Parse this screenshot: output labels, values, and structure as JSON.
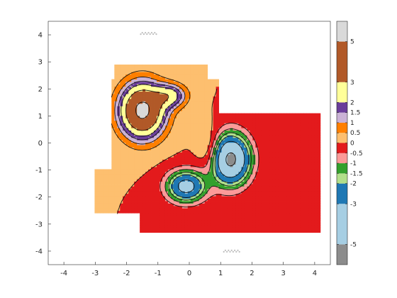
{
  "chart_data": {
    "type": "contour",
    "title": "",
    "xlabel": "",
    "ylabel": "",
    "xlim": [
      -4.5,
      4.5
    ],
    "ylim": [
      -4.5,
      4.5
    ],
    "grid": false,
    "x_ticks": [
      -4,
      -3,
      -2,
      -1,
      0,
      1,
      2,
      3,
      4
    ],
    "y_ticks": [
      -4,
      -3,
      -2,
      -1,
      0,
      1,
      2,
      3,
      4
    ],
    "contour_levels": [
      -5,
      -3,
      -2,
      -1.5,
      -1,
      -0.5,
      0,
      0.5,
      1,
      1.5,
      2,
      3,
      5
    ],
    "colorbar": {
      "range": [
        -6,
        6
      ],
      "tick_labels": [
        "-5",
        "-3",
        "-2",
        "-1.5",
        "-1",
        "-0.5",
        "0",
        "0.5",
        "1",
        "1.5",
        "2",
        "3",
        "5"
      ],
      "tick_values": [
        -5,
        -3,
        -2,
        -1.5,
        -1,
        -0.5,
        0,
        0.5,
        1,
        1.5,
        2,
        3,
        5
      ],
      "bands": [
        {
          "from": -6,
          "to": -5,
          "color": "#8c8c8c"
        },
        {
          "from": -5,
          "to": -3,
          "color": "#a6cee3"
        },
        {
          "from": -3,
          "to": -2,
          "color": "#1f78b4"
        },
        {
          "from": -2,
          "to": -1.5,
          "color": "#b2df8a"
        },
        {
          "from": -1.5,
          "to": -1,
          "color": "#33a02c"
        },
        {
          "from": -1,
          "to": -0.5,
          "color": "#fb9a99"
        },
        {
          "from": -0.5,
          "to": 0,
          "color": "#e31a1c"
        },
        {
          "from": 0,
          "to": 0.5,
          "color": "#fdbf6f"
        },
        {
          "from": 0.5,
          "to": 1,
          "color": "#ff7f00"
        },
        {
          "from": 1,
          "to": 1.5,
          "color": "#cab2d6"
        },
        {
          "from": 1.5,
          "to": 2,
          "color": "#6a3d9a"
        },
        {
          "from": 2,
          "to": 3,
          "color": "#ffff99"
        },
        {
          "from": 3,
          "to": 5,
          "color": "#b15928"
        },
        {
          "from": 5,
          "to": 6,
          "color": "#d9d9d9"
        }
      ]
    },
    "features": [
      {
        "kind": "maximum",
        "x": -1.5,
        "y": 1.2,
        "value": 5.5
      },
      {
        "kind": "minimum",
        "x": 1.3,
        "y": -0.6,
        "value": -5.5
      },
      {
        "kind": "minimum",
        "x": -0.1,
        "y": -1.6,
        "value": -3.5
      },
      {
        "kind": "maximum",
        "x": -0.6,
        "y": 1.7,
        "value": 3.6
      }
    ]
  }
}
